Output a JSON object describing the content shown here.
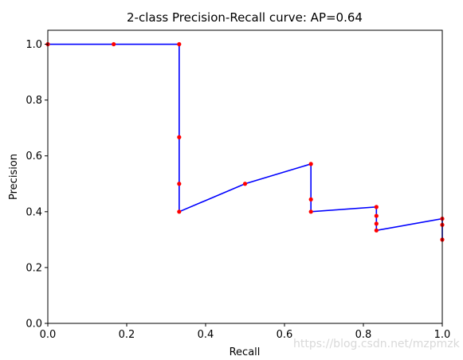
{
  "chart_data": {
    "type": "line",
    "title": "2-class Precision-Recall curve: AP=0.64",
    "xlabel": "Recall",
    "ylabel": "Precision",
    "xlim": [
      0,
      1
    ],
    "ylim": [
      0,
      1.05
    ],
    "xticks": [
      "0.0",
      "0.2",
      "0.4",
      "0.6",
      "0.8",
      "1.0"
    ],
    "yticks": [
      "0.0",
      "0.2",
      "0.4",
      "0.6",
      "0.8",
      "1.0"
    ],
    "grid": false,
    "series": [
      {
        "line_color": "#0000ff",
        "x": [
          0.0,
          0.333,
          0.333,
          0.333,
          0.5,
          0.667,
          0.667,
          0.667,
          0.833,
          0.833,
          0.833,
          1.0,
          1.0,
          1.0
        ],
        "y": [
          1.0,
          1.0,
          0.4,
          0.4,
          0.5,
          0.571,
          0.4,
          0.4,
          0.417,
          0.417,
          0.333,
          0.375,
          0.3,
          0.3
        ]
      }
    ],
    "points": {
      "marker_color": "#ff0000",
      "x": [
        0.0,
        0.167,
        0.333,
        0.333,
        0.333,
        0.333,
        0.5,
        0.667,
        0.667,
        0.667,
        0.833,
        0.833,
        0.833,
        0.833,
        1.0,
        1.0,
        1.0
      ],
      "y": [
        1.0,
        1.0,
        1.0,
        0.667,
        0.5,
        0.4,
        0.5,
        0.571,
        0.444,
        0.4,
        0.417,
        0.385,
        0.357,
        0.333,
        0.375,
        0.353,
        0.3
      ]
    }
  },
  "watermark": "https://blog.csdn.net/mzpmzk"
}
